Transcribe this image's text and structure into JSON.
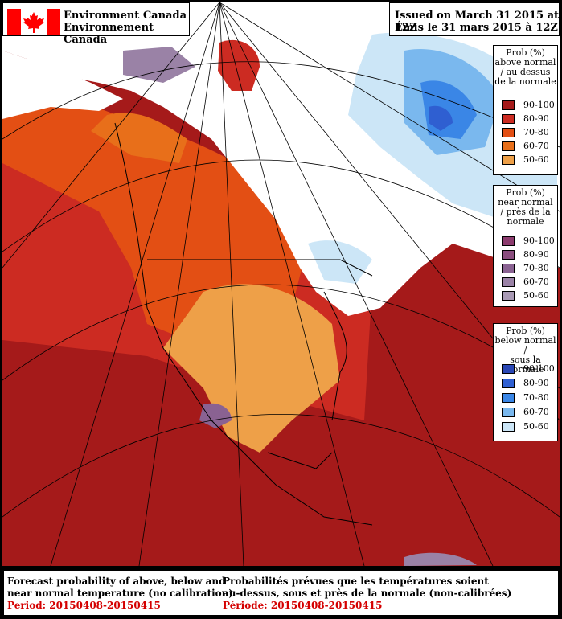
{
  "brand": {
    "line1": "Environment Canada",
    "line2": "Environnement Canada"
  },
  "issued": {
    "en": "Issued on March 31 2015 at 12Z",
    "fr": "Émis le 31 mars 2015 à 12Z"
  },
  "legends": [
    {
      "title": [
        "Prob (%)",
        "above normal",
        "/ au dessus",
        "de la normale"
      ],
      "items": [
        {
          "label": "90-100",
          "color": "#a51a1a"
        },
        {
          "label": "80-90",
          "color": "#cc2b22"
        },
        {
          "label": "70-80",
          "color": "#e34f14"
        },
        {
          "label": "60-70",
          "color": "#e86f1a"
        },
        {
          "label": "50-60",
          "color": "#eea048"
        }
      ]
    },
    {
      "title": [
        "Prob (%)",
        "near normal",
        "/ près de la",
        "normale"
      ],
      "items": [
        {
          "label": "90-100",
          "color": "#8c3b6e"
        },
        {
          "label": "80-90",
          "color": "#8a4d7e"
        },
        {
          "label": "70-80",
          "color": "#8a6292"
        },
        {
          "label": "60-70",
          "color": "#9a82a6"
        },
        {
          "label": "50-60",
          "color": "#a99ab5"
        }
      ]
    },
    {
      "title": [
        "Prob (%)",
        "below normal /",
        "sous la normale"
      ],
      "items": [
        {
          "label": "90-100",
          "color": "#2a47b5"
        },
        {
          "label": "80-90",
          "color": "#2f5fd1"
        },
        {
          "label": "70-80",
          "color": "#3a86e6"
        },
        {
          "label": "60-70",
          "color": "#7ab8ee"
        },
        {
          "label": "50-60",
          "color": "#cce6f7"
        }
      ]
    }
  ],
  "footer": {
    "en": [
      "Forecast probability of above, below and",
      "near normal temperature (no calibration)"
    ],
    "en_period": "Period: 20150408-20150415",
    "fr": [
      "Probabilités prévues que les températures soient",
      "au-dessus, sous et près de la normale (non-calibrées)"
    ],
    "fr_period": "Période: 20150408-20150415"
  },
  "colors": {
    "dark_red": "#a51a1a",
    "red": "#cc2b22",
    "orange": "#e34f14",
    "light_orange": "#eea048",
    "purple": "#8a6292",
    "blue": "#3a86e6",
    "light_blue": "#cce6f7",
    "flag_red": "#ff0000",
    "period_red": "#d40000"
  }
}
